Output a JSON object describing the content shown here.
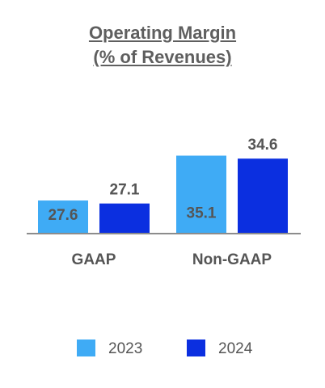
{
  "chart_data": {
    "type": "bar",
    "title_lines": [
      "Operating Margin",
      "(% of Revenues)"
    ],
    "categories": [
      "GAAP",
      "Non-GAAP"
    ],
    "series": [
      {
        "name": "2023",
        "values": [
          27.6,
          35.1
        ],
        "color": "#3fabf5",
        "label_position": "inside"
      },
      {
        "name": "2024",
        "values": [
          27.1,
          34.6
        ],
        "color": "#0b2fe0",
        "label_position": "above"
      }
    ],
    "ylim": [
      22.2,
      39.5
    ],
    "grid": false,
    "legend": "bottom"
  }
}
